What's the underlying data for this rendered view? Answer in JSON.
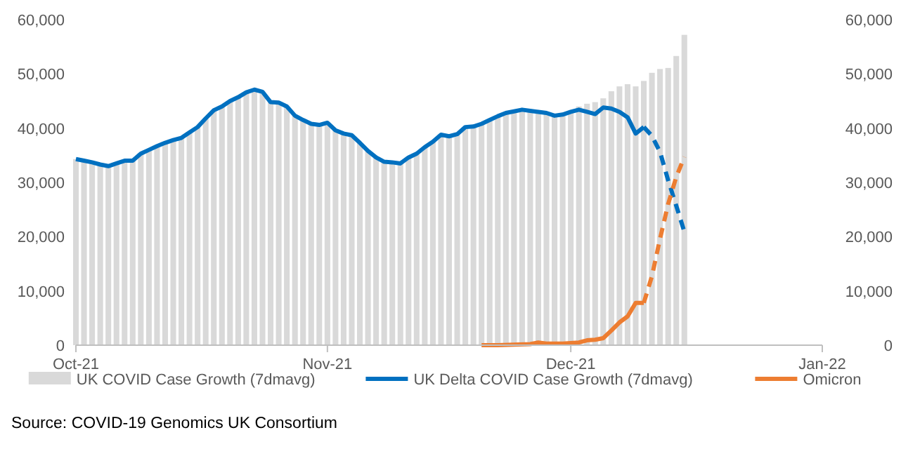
{
  "chart_data": {
    "type": "bar",
    "xlim": [
      "2021-10-01",
      "2022-01-01"
    ],
    "xticks": [
      {
        "value": "2021-10-01",
        "label": "Oct-21"
      },
      {
        "value": "2021-11-01",
        "label": "Nov-21"
      },
      {
        "value": "2021-12-01",
        "label": "Dec-21"
      },
      {
        "value": "2022-01-01",
        "label": "Jan-22"
      }
    ],
    "ylim": [
      0,
      60000
    ],
    "yticks": [
      0,
      {
        "value": 10000,
        "label": "10,000"
      },
      {
        "value": 20000,
        "label": "20,000"
      },
      {
        "value": 30000,
        "label": "30,000"
      },
      {
        "value": 40000,
        "label": "40,000"
      },
      {
        "value": 50000,
        "label": "50,000"
      },
      {
        "value": 60000,
        "label": "60,000"
      }
    ],
    "y2lim": [
      0,
      60000
    ],
    "y2ticks": [
      0,
      {
        "value": 10000,
        "label": "10,000"
      },
      {
        "value": 20000,
        "label": "20,000"
      },
      {
        "value": 30000,
        "label": "30,000"
      },
      {
        "value": 40000,
        "label": "40,000"
      },
      {
        "value": 50000,
        "label": "50,000"
      },
      {
        "value": 60000,
        "label": "60,000"
      }
    ],
    "grid": false,
    "legend": "bottom",
    "series": [
      {
        "name": "UK COVID Case Growth (7dmavg)",
        "color": "#d9d9d9",
        "x": [
          "2021-10-01",
          "2021-10-02",
          "2021-10-03",
          "2021-10-04",
          "2021-10-05",
          "2021-10-06",
          "2021-10-07",
          "2021-10-08",
          "2021-10-09",
          "2021-10-10",
          "2021-10-11",
          "2021-10-12",
          "2021-10-13",
          "2021-10-14",
          "2021-10-15",
          "2021-10-16",
          "2021-10-17",
          "2021-10-18",
          "2021-10-19",
          "2021-10-20",
          "2021-10-21",
          "2021-10-22",
          "2021-10-23",
          "2021-10-24",
          "2021-10-25",
          "2021-10-26",
          "2021-10-27",
          "2021-10-28",
          "2021-10-29",
          "2021-10-30",
          "2021-10-31",
          "2021-11-01",
          "2021-11-02",
          "2021-11-03",
          "2021-11-04",
          "2021-11-05",
          "2021-11-06",
          "2021-11-07",
          "2021-11-08",
          "2021-11-09",
          "2021-11-10",
          "2021-11-11",
          "2021-11-12",
          "2021-11-13",
          "2021-11-14",
          "2021-11-15",
          "2021-11-16",
          "2021-11-17",
          "2021-11-18",
          "2021-11-19",
          "2021-11-20",
          "2021-11-21",
          "2021-11-22",
          "2021-11-23",
          "2021-11-24",
          "2021-11-25",
          "2021-11-26",
          "2021-11-27",
          "2021-11-28",
          "2021-11-29",
          "2021-11-30",
          "2021-12-01",
          "2021-12-02",
          "2021-12-03",
          "2021-12-04",
          "2021-12-05",
          "2021-12-06",
          "2021-12-07",
          "2021-12-08",
          "2021-12-09",
          "2021-12-10",
          "2021-12-11",
          "2021-12-12",
          "2021-12-13",
          "2021-12-14",
          "2021-12-15"
        ],
        "values": [
          34300,
          34000,
          33700,
          33300,
          33000,
          33500,
          34000,
          34000,
          35300,
          36000,
          36700,
          37300,
          37800,
          38200,
          39200,
          40200,
          41800,
          43300,
          44000,
          45000,
          45700,
          46600,
          47100,
          46700,
          44800,
          44700,
          44000,
          42300,
          41500,
          40800,
          40600,
          41000,
          39600,
          39000,
          38700,
          37300,
          35800,
          34600,
          33800,
          33700,
          33500,
          34600,
          35300,
          36500,
          37500,
          38800,
          38500,
          38900,
          40200,
          40300,
          40800,
          41500,
          42200,
          42800,
          43100,
          43400,
          43200,
          43000,
          42800,
          42300,
          42500,
          43000,
          44000,
          44500,
          44800,
          45500,
          46800,
          47700,
          48100,
          47700,
          48700,
          50200,
          50900,
          51100,
          53300,
          57200
        ]
      },
      {
        "type": "line",
        "name": "UK Delta COVID Case Growth (7dmavg)",
        "color": "#0070c0",
        "line_style": "solid",
        "x": [
          "2021-10-01",
          "2021-10-02",
          "2021-10-03",
          "2021-10-04",
          "2021-10-05",
          "2021-10-06",
          "2021-10-07",
          "2021-10-08",
          "2021-10-09",
          "2021-10-10",
          "2021-10-11",
          "2021-10-12",
          "2021-10-13",
          "2021-10-14",
          "2021-10-15",
          "2021-10-16",
          "2021-10-17",
          "2021-10-18",
          "2021-10-19",
          "2021-10-20",
          "2021-10-21",
          "2021-10-22",
          "2021-10-23",
          "2021-10-24",
          "2021-10-25",
          "2021-10-26",
          "2021-10-27",
          "2021-10-28",
          "2021-10-29",
          "2021-10-30",
          "2021-10-31",
          "2021-11-01",
          "2021-11-02",
          "2021-11-03",
          "2021-11-04",
          "2021-11-05",
          "2021-11-06",
          "2021-11-07",
          "2021-11-08",
          "2021-11-09",
          "2021-11-10",
          "2021-11-11",
          "2021-11-12",
          "2021-11-13",
          "2021-11-14",
          "2021-11-15",
          "2021-11-16",
          "2021-11-17",
          "2021-11-18",
          "2021-11-19",
          "2021-11-20",
          "2021-11-21",
          "2021-11-22",
          "2021-11-23",
          "2021-11-24",
          "2021-11-25",
          "2021-11-26",
          "2021-11-27",
          "2021-11-28",
          "2021-11-29",
          "2021-11-30",
          "2021-12-01",
          "2021-12-02",
          "2021-12-03",
          "2021-12-04",
          "2021-12-05",
          "2021-12-06",
          "2021-12-07",
          "2021-12-08",
          "2021-12-09",
          "2021-12-10"
        ],
        "values": [
          34300,
          34000,
          33700,
          33300,
          33000,
          33500,
          34000,
          34000,
          35300,
          36000,
          36700,
          37300,
          37800,
          38200,
          39200,
          40200,
          41800,
          43300,
          44000,
          45000,
          45700,
          46600,
          47100,
          46700,
          44800,
          44700,
          44000,
          42300,
          41500,
          40800,
          40600,
          41000,
          39600,
          39000,
          38700,
          37300,
          35800,
          34600,
          33800,
          33700,
          33500,
          34600,
          35300,
          36500,
          37500,
          38800,
          38500,
          38900,
          40200,
          40300,
          40800,
          41500,
          42200,
          42800,
          43100,
          43400,
          43200,
          43000,
          42800,
          42300,
          42500,
          43000,
          43400,
          43000,
          42600,
          43800,
          43600,
          43000,
          42000,
          39000,
          40200
        ]
      },
      {
        "type": "line",
        "color": "#0070c0",
        "line_style": "dashed",
        "x": [
          "2021-12-10",
          "2021-12-11",
          "2021-12-12",
          "2021-12-13",
          "2021-12-14",
          "2021-12-15"
        ],
        "values": [
          40200,
          38600,
          35600,
          30400,
          25700,
          20900
        ]
      },
      {
        "type": "line",
        "name": "Omicron",
        "color": "#ed7d31",
        "line_style": "solid",
        "x": [
          "2021-11-20",
          "2021-11-22",
          "2021-11-24",
          "2021-11-26",
          "2021-11-27",
          "2021-11-28",
          "2021-11-30",
          "2021-12-02",
          "2021-12-03",
          "2021-12-04",
          "2021-12-05",
          "2021-12-06",
          "2021-12-07",
          "2021-12-08",
          "2021-12-09",
          "2021-12-10"
        ],
        "values": [
          0,
          0,
          100,
          200,
          500,
          300,
          300,
          500,
          900,
          1000,
          1300,
          2700,
          4200,
          5300,
          7800,
          7800
        ]
      },
      {
        "type": "line",
        "color": "#ed7d31",
        "line_style": "dashed",
        "x": [
          "2021-12-10",
          "2021-12-11",
          "2021-12-12",
          "2021-12-13",
          "2021-12-14",
          "2021-12-15"
        ],
        "values": [
          7800,
          12700,
          19600,
          26000,
          31000,
          34700
        ]
      }
    ],
    "annotations": [
      "Source: COVID-19 Genomics UK Consortium"
    ]
  }
}
